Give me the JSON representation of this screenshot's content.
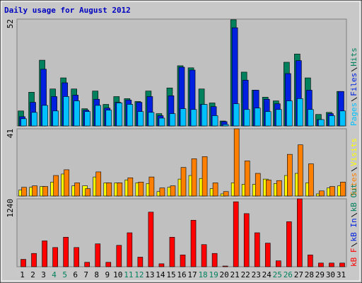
{
  "chart_data": {
    "type": "bar",
    "title": "Daily usage for August 2012",
    "categories": [
      "1",
      "2",
      "3",
      "4",
      "5",
      "6",
      "7",
      "8",
      "9",
      "10",
      "11",
      "12",
      "13",
      "14",
      "15",
      "16",
      "17",
      "18",
      "19",
      "20",
      "21",
      "22",
      "23",
      "24",
      "25",
      "26",
      "27",
      "28",
      "29",
      "30",
      "31"
    ],
    "category_colors": [
      "#000000",
      "#000000",
      "#000000",
      "#00805c",
      "#00805c",
      "#000000",
      "#000000",
      "#000000",
      "#000000",
      "#000000",
      "#00805c",
      "#00805c",
      "#000000",
      "#000000",
      "#000000",
      "#000000",
      "#000000",
      "#00805c",
      "#00805c",
      "#000000",
      "#000000",
      "#000000",
      "#000000",
      "#000000",
      "#00805c",
      "#00805c",
      "#000000",
      "#000000",
      "#000000",
      "#000000",
      "#000000"
    ],
    "panels": [
      {
        "ylim": [
          0,
          52
        ],
        "yticks": [
          52
        ],
        "series": [
          {
            "name": "Hits",
            "color": "#00805c",
            "values": [
              7.3,
              16.4,
              32,
              18,
              23.4,
              18,
              8.4,
              17,
              10.5,
              14.3,
              13.3,
              11.9,
              17,
              6,
              18.5,
              29.3,
              28.3,
              18,
              11.2,
              2.4,
              51.7,
              26.2,
              17.4,
              14,
              12.2,
              31,
              35,
              23.4,
              5.6,
              6.6,
              16.8
            ]
          },
          {
            "name": "Files",
            "color": "#0020e0",
            "values": [
              4.5,
              11.5,
              27.6,
              14.3,
              21,
              15,
              7.7,
              13,
              8.7,
              11.5,
              12.6,
              11.5,
              14.3,
              5,
              14.7,
              28.6,
              27.2,
              10.5,
              9.4,
              2.1,
              47.8,
              22.3,
              17.4,
              13,
              10.8,
              25.5,
              31.8,
              17.4,
              3.1,
              6,
              16.8
            ]
          },
          {
            "name": "Pages",
            "color": "#00c0ff",
            "values": [
              3.5,
              6.6,
              10,
              7.3,
              14.3,
              12.2,
              7,
              10,
              7.7,
              11.2,
              10.5,
              7,
              6.6,
              3.8,
              6,
              8.4,
              8,
              10.5,
              5,
              0.7,
              10.8,
              8,
              8.7,
              7,
              8,
              12.2,
              13.3,
              8,
              3.1,
              5,
              7.3
            ]
          }
        ]
      },
      {
        "ylim": [
          0,
          41
        ],
        "yticks": [
          41
        ],
        "series": [
          {
            "name": "Visits",
            "color": "#ffff00",
            "values": [
              3.6,
              5.3,
              5.8,
              8.5,
              13.4,
              6.2,
              6.2,
              11.6,
              8,
              8,
              9.8,
              8,
              7.6,
              2.7,
              5.3,
              10.3,
              12.5,
              10.7,
              4.5,
              1.3,
              8,
              7.1,
              7.1,
              10.3,
              7.6,
              12.5,
              13.8,
              8,
              1.3,
              4.9,
              6.2
            ]
          },
          {
            "name": "Sites",
            "color": "#ff8000",
            "values": [
              5.3,
              6.2,
              5.8,
              12.5,
              16,
              8,
              4.5,
              14.7,
              8,
              8,
              11.1,
              8.5,
              11.6,
              4.9,
              6.2,
              17.4,
              22.7,
              24,
              8,
              2.7,
              41,
              21.4,
              13.8,
              9.8,
              9.4,
              25.4,
              31.2,
              19.6,
              3.1,
              5.8,
              8.5
            ]
          }
        ]
      },
      {
        "ylim": [
          0,
          1240
        ],
        "yticks": [
          1240
        ],
        "series": [
          {
            "name": "kB Out",
            "color": "#00805c",
            "values": [
              0,
              0,
              0,
              0,
              0,
              0,
              0,
              0,
              0,
              0,
              0,
              0,
              0,
              0,
              0,
              0,
              0,
              0,
              0,
              0,
              0,
              0,
              0,
              0,
              0,
              0,
              0,
              0,
              0,
              0,
              0
            ]
          },
          {
            "name": "kB In",
            "color": "#0020e0",
            "values": [
              0,
              0,
              0,
              0,
              0,
              0,
              0,
              0,
              0,
              0,
              0,
              0,
              0,
              0,
              0,
              0,
              0,
              0,
              0,
              0,
              0,
              0,
              0,
              0,
              0,
              0,
              0,
              0,
              0,
              0,
              0
            ]
          },
          {
            "name": "kB F",
            "color": "#ff0000",
            "values": [
              135,
              243,
              472,
              351,
              539,
              351,
              81,
              418,
              81,
              391,
              620,
              175,
              997,
              54,
              539,
              216,
              849,
              404,
              243,
              13,
              1186,
              970,
              620,
              431,
              108,
              822,
              1240,
              216,
              67,
              67,
              67
            ]
          }
        ]
      }
    ]
  }
}
